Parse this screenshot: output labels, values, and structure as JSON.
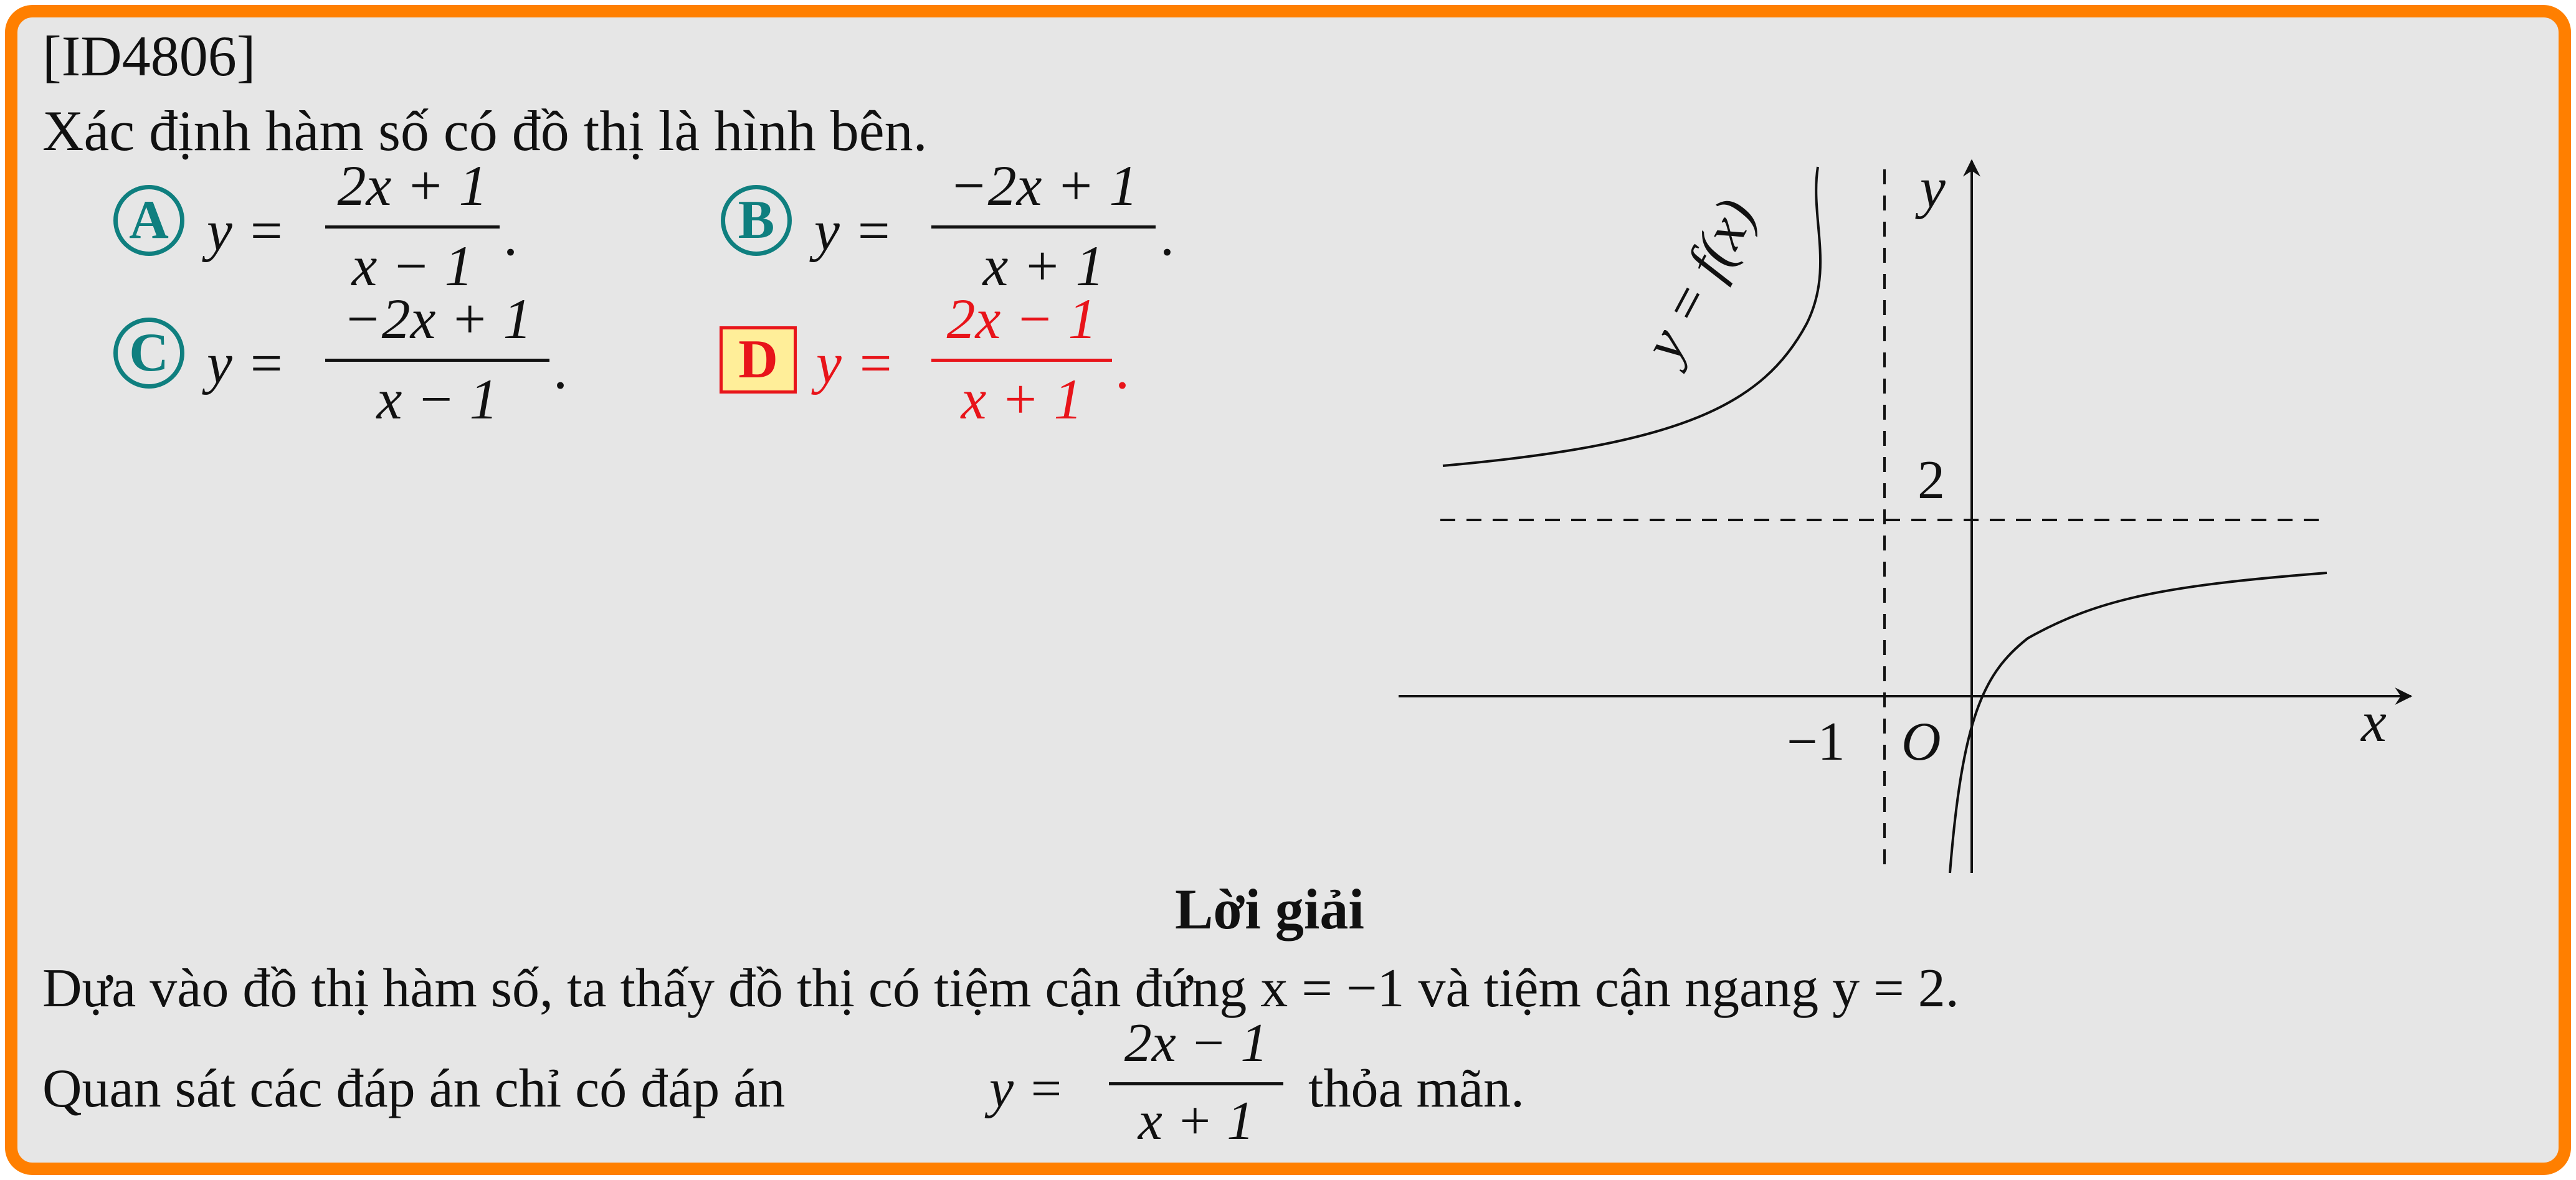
{
  "question": {
    "id": "[ID4806]",
    "prompt": "Xác định hàm số có đồ thị là hình bên.",
    "options": [
      {
        "letter": "A",
        "lhs": "y =",
        "numerator": "2x + 1",
        "denominator": "x − 1",
        "end": "."
      },
      {
        "letter": "B",
        "lhs": "y =",
        "numerator": "−2x + 1",
        "denominator": "x + 1",
        "end": "."
      },
      {
        "letter": "C",
        "lhs": "y =",
        "numerator": "−2x + 1",
        "denominator": "x − 1",
        "end": "."
      },
      {
        "letter": "D",
        "lhs": "y =",
        "numerator": "2x − 1",
        "denominator": "x + 1",
        "end": "."
      }
    ],
    "correct_option": "D"
  },
  "graph": {
    "curve_label": "y = f(x)",
    "x_axis_label": "x",
    "y_axis_label": "y",
    "origin_label": "O",
    "vertical_asymptote_label": "−1",
    "horizontal_asymptote_label": "2",
    "vertical_asymptote": -1,
    "horizontal_asymptote": 2
  },
  "solution": {
    "heading": "Lời giải",
    "line1": "Dựa vào đồ thị hàm số, ta thấy đồ thị có tiệm cận đứng x = −1 và tiệm cận ngang y = 2.",
    "line2_before": "Quan sát các đáp án chỉ có đáp án",
    "line2_lhs": "y =",
    "line2_numerator": "2x − 1",
    "line2_denominator": "x + 1",
    "line2_after": "thỏa mãn."
  },
  "colors": {
    "border": "#ff7f00",
    "background": "#e6e6e6",
    "option_circle": "#0f7f7f",
    "correct": "#e8141a",
    "correct_box_fill": "#ffee99"
  }
}
